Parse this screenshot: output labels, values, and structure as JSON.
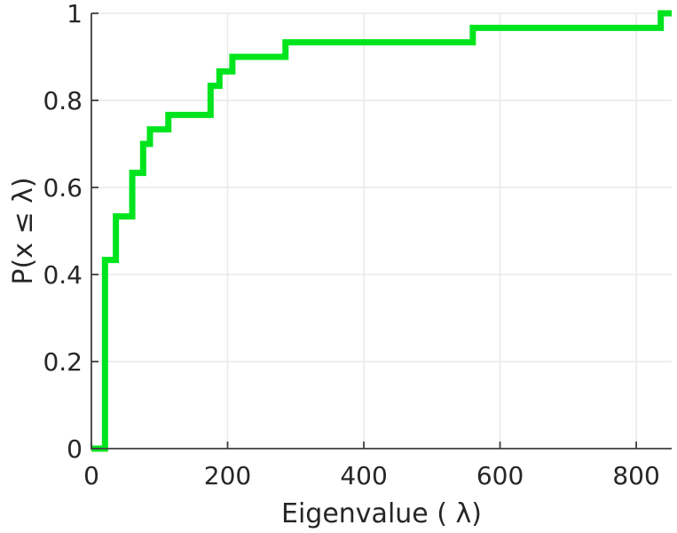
{
  "figure": {
    "background": "#ffffff"
  },
  "chart_data": {
    "type": "line",
    "subtype": "ecdf-stairs",
    "title": "",
    "xlabel": "Eigenvalue (  λ)",
    "ylabel": "P(x ≤ λ)",
    "xlim": [
      0,
      852
    ],
    "ylim": [
      0,
      1
    ],
    "xticks": {
      "values": [
        0,
        200,
        400,
        600,
        800
      ],
      "labels": [
        "0",
        "200",
        "400",
        "600",
        "800"
      ]
    },
    "yticks": {
      "values": [
        0,
        0.2,
        0.4,
        0.6,
        0.8,
        1
      ],
      "labels": [
        "0",
        "0.2",
        "0.4",
        "0.6",
        "0.8",
        "1"
      ]
    },
    "grid": true,
    "legend": null,
    "colors": {
      "line": "#00e41e",
      "grid": "#e9e9e9",
      "axis": "#3f3f3f",
      "text": "#262626"
    },
    "series": [
      {
        "name": "eigenvalue-ecdf",
        "color": "#00e41e",
        "line_width": 7,
        "n_samples": 30,
        "start": {
          "x": 0,
          "p": 0
        },
        "steps": [
          {
            "x": 20,
            "p": 0.4333
          },
          {
            "x": 36,
            "p": 0.5333
          },
          {
            "x": 60,
            "p": 0.6333
          },
          {
            "x": 76,
            "p": 0.7
          },
          {
            "x": 86,
            "p": 0.7333
          },
          {
            "x": 113,
            "p": 0.7667
          },
          {
            "x": 175,
            "p": 0.8333
          },
          {
            "x": 188,
            "p": 0.8667
          },
          {
            "x": 207,
            "p": 0.9
          },
          {
            "x": 285,
            "p": 0.9333
          },
          {
            "x": 560,
            "p": 0.9667
          },
          {
            "x": 836,
            "p": 1.0
          }
        ],
        "end_x": 852
      }
    ]
  }
}
